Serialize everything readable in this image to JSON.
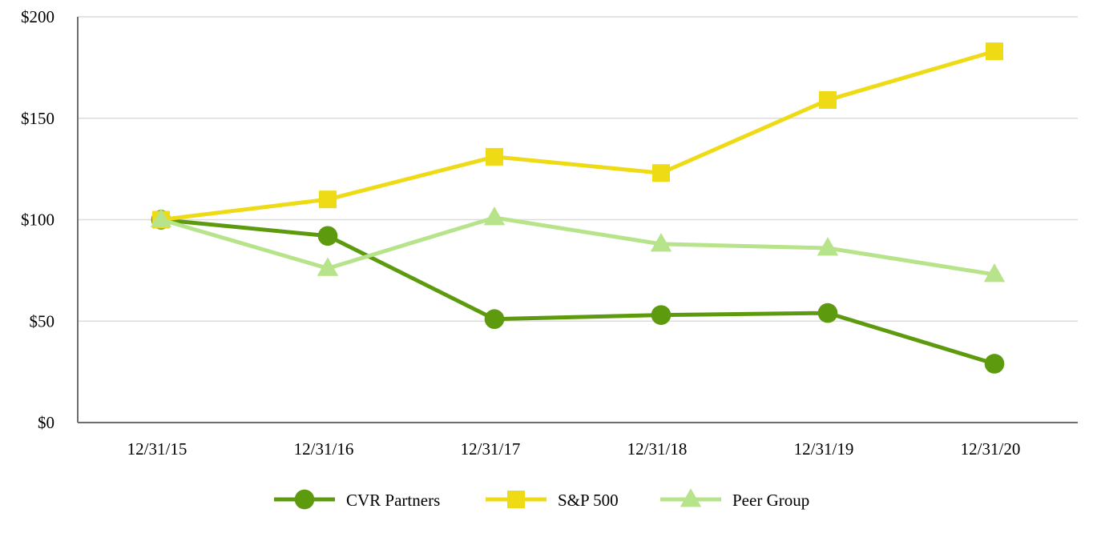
{
  "chart_data": {
    "type": "line",
    "categories": [
      "12/31/15",
      "12/31/16",
      "12/31/17",
      "12/31/18",
      "12/31/19",
      "12/31/20"
    ],
    "y_tick_labels": [
      "$0",
      "$50",
      "$100",
      "$150",
      "$200"
    ],
    "y_ticks": [
      0,
      50,
      100,
      150,
      200
    ],
    "ylim": [
      0,
      200
    ],
    "grid": true,
    "legend_position": "bottom",
    "series": [
      {
        "name": "CVR Partners",
        "marker": "circle",
        "color": "#5e9a0e",
        "values": [
          100,
          92,
          51,
          53,
          54,
          29
        ]
      },
      {
        "name": "S&P 500",
        "marker": "square",
        "color": "#eedb16",
        "values": [
          100,
          110,
          131,
          123,
          159,
          183
        ]
      },
      {
        "name": "Peer Group",
        "marker": "triangle",
        "color": "#b7e38a",
        "values": [
          100,
          76,
          101,
          88,
          86,
          73
        ]
      }
    ]
  }
}
